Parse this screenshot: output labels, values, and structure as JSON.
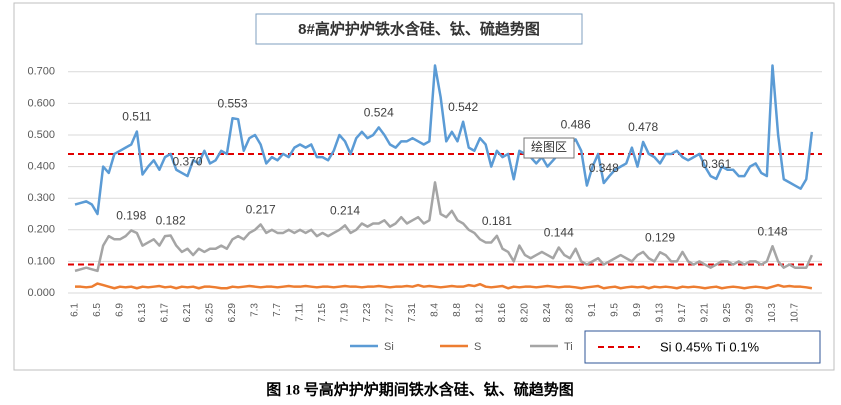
{
  "chart_data": {
    "type": "line",
    "title": "8#高炉护炉铁水含硅、钛、硫趋势图",
    "caption": "图 18 号高炉护炉期间铁水含硅、钛、硫趋势图",
    "tooltip": "绘图区",
    "reference_legend": "Si 0.45%  Ti 0.1%",
    "reference_lines": [
      {
        "value": 0.44,
        "color": "#e00000"
      },
      {
        "value": 0.09,
        "color": "#e00000"
      }
    ],
    "ylim": [
      0,
      0.75
    ],
    "yticks": [
      {
        "value": 0,
        "label": "0.000"
      },
      {
        "value": 0.1,
        "label": "0.100"
      },
      {
        "value": 0.2,
        "label": "0.200"
      },
      {
        "value": 0.3,
        "label": "0.300"
      },
      {
        "value": 0.4,
        "label": "0.400"
      },
      {
        "value": 0.5,
        "label": "0.500"
      },
      {
        "value": 0.6,
        "label": "0.600"
      },
      {
        "value": 0.7,
        "label": "0.700"
      }
    ],
    "grid": true,
    "categories": [
      "6.1",
      null,
      null,
      null,
      "6.5",
      null,
      null,
      null,
      "6.9",
      null,
      null,
      null,
      "6.13",
      null,
      null,
      null,
      "6.17",
      null,
      null,
      null,
      "6.21",
      null,
      null,
      null,
      "6.25",
      null,
      null,
      null,
      "6.29",
      null,
      null,
      null,
      "7.3",
      null,
      null,
      null,
      "7.7",
      null,
      null,
      null,
      "7.11",
      null,
      null,
      null,
      "7.15",
      null,
      null,
      null,
      "7.19",
      null,
      null,
      null,
      "7.23",
      null,
      null,
      null,
      "7.27",
      null,
      null,
      null,
      "7.31",
      null,
      null,
      null,
      "8.4",
      null,
      null,
      null,
      "8.8",
      null,
      null,
      null,
      "8.12",
      null,
      null,
      null,
      "8.16",
      null,
      null,
      null,
      "8.20",
      null,
      null,
      null,
      "8.24",
      null,
      null,
      null,
      "8.28",
      null,
      null,
      null,
      "9.1",
      null,
      null,
      null,
      "9.5",
      null,
      null,
      null,
      "9.9",
      null,
      null,
      null,
      "9.13",
      null,
      null,
      null,
      "9.17",
      null,
      null,
      null,
      "9.21",
      null,
      null,
      null,
      "9.25",
      null,
      null,
      null,
      "9.29",
      null,
      null,
      null,
      "10.3",
      null,
      null,
      null,
      "10.7",
      null,
      null,
      null
    ],
    "series": [
      {
        "name": "Si",
        "color": "#5b9bd5",
        "values": [
          0.28,
          0.285,
          0.29,
          0.28,
          0.25,
          0.4,
          0.38,
          0.44,
          0.45,
          0.46,
          0.47,
          0.511,
          0.375,
          0.4,
          0.42,
          0.39,
          0.43,
          0.44,
          0.39,
          0.38,
          0.37,
          0.42,
          0.41,
          0.45,
          0.41,
          0.42,
          0.45,
          0.44,
          0.553,
          0.55,
          0.45,
          0.49,
          0.5,
          0.47,
          0.41,
          0.43,
          0.42,
          0.44,
          0.43,
          0.46,
          0.47,
          0.46,
          0.47,
          0.43,
          0.43,
          0.42,
          0.45,
          0.5,
          0.48,
          0.44,
          0.49,
          0.51,
          0.49,
          0.5,
          0.524,
          0.5,
          0.47,
          0.46,
          0.48,
          0.48,
          0.49,
          0.48,
          0.47,
          0.48,
          0.72,
          0.62,
          0.48,
          0.51,
          0.48,
          0.542,
          0.46,
          0.45,
          0.49,
          0.47,
          0.4,
          0.45,
          0.43,
          0.44,
          0.36,
          0.45,
          0.44,
          0.43,
          0.41,
          0.43,
          0.4,
          0.42,
          0.44,
          0.46,
          0.47,
          0.486,
          0.45,
          0.34,
          0.4,
          0.44,
          0.348,
          0.37,
          0.39,
          0.4,
          0.41,
          0.46,
          0.4,
          0.478,
          0.44,
          0.43,
          0.41,
          0.44,
          0.44,
          0.45,
          0.43,
          0.42,
          0.43,
          0.44,
          0.4,
          0.37,
          0.361,
          0.4,
          0.39,
          0.39,
          0.37,
          0.37,
          0.4,
          0.41,
          0.38,
          0.37,
          0.72,
          0.5,
          0.36,
          0.35,
          0.34,
          0.33,
          0.36,
          0.51
        ],
        "value_labels": [
          null,
          null,
          null,
          null,
          null,
          null,
          null,
          null,
          null,
          null,
          null,
          "0.511",
          null,
          null,
          null,
          null,
          null,
          null,
          null,
          null,
          "0.370",
          null,
          null,
          null,
          null,
          null,
          null,
          null,
          "0.553",
          null,
          null,
          null,
          null,
          null,
          null,
          null,
          null,
          null,
          null,
          null,
          null,
          null,
          null,
          null,
          null,
          null,
          null,
          null,
          null,
          null,
          null,
          null,
          null,
          null,
          "0.524",
          null,
          null,
          null,
          null,
          null,
          null,
          null,
          null,
          null,
          null,
          null,
          null,
          null,
          null,
          "0.542",
          null,
          null,
          null,
          null,
          null,
          null,
          null,
          null,
          null,
          null,
          null,
          null,
          null,
          null,
          null,
          null,
          null,
          null,
          null,
          "0.486",
          null,
          null,
          null,
          null,
          "0.348",
          null,
          null,
          null,
          null,
          null,
          null,
          "0.478",
          null,
          null,
          null,
          null,
          null,
          null,
          null,
          null,
          null,
          null,
          null,
          null,
          "0.361",
          null,
          null,
          null,
          null,
          null,
          null,
          null,
          null,
          null,
          null,
          null,
          null,
          null,
          null,
          null,
          null,
          null
        ]
      },
      {
        "name": "S",
        "color": "#ed7d31",
        "values": [
          0.02,
          0.02,
          0.018,
          0.02,
          0.03,
          0.025,
          0.02,
          0.015,
          0.02,
          0.018,
          0.02,
          0.015,
          0.02,
          0.018,
          0.02,
          0.022,
          0.018,
          0.02,
          0.015,
          0.02,
          0.018,
          0.02,
          0.015,
          0.02,
          0.02,
          0.018,
          0.015,
          0.015,
          0.02,
          0.018,
          0.02,
          0.022,
          0.02,
          0.018,
          0.02,
          0.02,
          0.018,
          0.02,
          0.022,
          0.02,
          0.02,
          0.022,
          0.02,
          0.018,
          0.02,
          0.02,
          0.018,
          0.02,
          0.022,
          0.02,
          0.02,
          0.018,
          0.02,
          0.02,
          0.022,
          0.02,
          0.018,
          0.02,
          0.02,
          0.022,
          0.02,
          0.025,
          0.02,
          0.022,
          0.02,
          0.018,
          0.02,
          0.022,
          0.02,
          0.02,
          0.025,
          0.022,
          0.028,
          0.02,
          0.018,
          0.02,
          0.022,
          0.015,
          0.02,
          0.018,
          0.02,
          0.02,
          0.018,
          0.02,
          0.022,
          0.02,
          0.018,
          0.02,
          0.02,
          0.018,
          0.015,
          0.018,
          0.02,
          0.022,
          0.015,
          0.018,
          0.02,
          0.015,
          0.018,
          0.02,
          0.018,
          0.02,
          0.015,
          0.02,
          0.018,
          0.02,
          0.018,
          0.015,
          0.02,
          0.018,
          0.02,
          0.018,
          0.015,
          0.018,
          0.02,
          0.015,
          0.018,
          0.02,
          0.018,
          0.015,
          0.018,
          0.02,
          0.018,
          0.015,
          0.02,
          0.025,
          0.02,
          0.022,
          0.02,
          0.02,
          0.018,
          0.015
        ]
      },
      {
        "name": "Ti",
        "color": "#a5a5a5",
        "values": [
          0.07,
          0.075,
          0.08,
          0.075,
          0.07,
          0.15,
          0.18,
          0.17,
          0.17,
          0.18,
          0.198,
          0.19,
          0.15,
          0.16,
          0.17,
          0.15,
          0.18,
          0.182,
          0.15,
          0.13,
          0.14,
          0.12,
          0.14,
          0.13,
          0.14,
          0.14,
          0.15,
          0.14,
          0.17,
          0.18,
          0.17,
          0.19,
          0.2,
          0.217,
          0.19,
          0.2,
          0.19,
          0.19,
          0.2,
          0.19,
          0.2,
          0.19,
          0.2,
          0.18,
          0.19,
          0.18,
          0.19,
          0.2,
          0.214,
          0.19,
          0.2,
          0.22,
          0.21,
          0.22,
          0.22,
          0.23,
          0.21,
          0.22,
          0.24,
          0.22,
          0.23,
          0.24,
          0.22,
          0.23,
          0.35,
          0.25,
          0.24,
          0.26,
          0.23,
          0.22,
          0.2,
          0.19,
          0.17,
          0.16,
          0.16,
          0.181,
          0.14,
          0.13,
          0.1,
          0.15,
          0.12,
          0.11,
          0.12,
          0.13,
          0.12,
          0.11,
          0.144,
          0.12,
          0.11,
          0.14,
          0.1,
          0.09,
          0.1,
          0.11,
          0.09,
          0.1,
          0.11,
          0.12,
          0.11,
          0.1,
          0.12,
          0.13,
          0.11,
          0.1,
          0.129,
          0.12,
          0.1,
          0.1,
          0.13,
          0.1,
          0.09,
          0.1,
          0.09,
          0.08,
          0.09,
          0.1,
          0.1,
          0.09,
          0.1,
          0.09,
          0.1,
          0.1,
          0.09,
          0.1,
          0.148,
          0.1,
          0.08,
          0.09,
          0.08,
          0.08,
          0.08,
          0.12
        ],
        "value_labels": [
          null,
          null,
          null,
          null,
          null,
          null,
          null,
          null,
          null,
          null,
          "0.198",
          null,
          null,
          null,
          null,
          null,
          null,
          "0.182",
          null,
          null,
          null,
          null,
          null,
          null,
          null,
          null,
          null,
          null,
          null,
          null,
          null,
          null,
          null,
          "0.217",
          null,
          null,
          null,
          null,
          null,
          null,
          null,
          null,
          null,
          null,
          null,
          null,
          null,
          null,
          "0.214",
          null,
          null,
          null,
          null,
          null,
          null,
          null,
          null,
          null,
          null,
          null,
          null,
          null,
          null,
          null,
          null,
          null,
          null,
          null,
          null,
          null,
          null,
          null,
          null,
          null,
          null,
          "0.181",
          null,
          null,
          null,
          null,
          null,
          null,
          null,
          null,
          null,
          null,
          "0.144",
          null,
          null,
          null,
          null,
          null,
          null,
          null,
          null,
          null,
          null,
          null,
          null,
          null,
          null,
          null,
          null,
          null,
          "0.129",
          null,
          null,
          null,
          null,
          null,
          null,
          null,
          null,
          null,
          null,
          null,
          null,
          null,
          null,
          null,
          null,
          null,
          null,
          null,
          "0.148",
          null,
          null,
          null,
          null,
          null,
          null,
          null
        ]
      }
    ]
  }
}
